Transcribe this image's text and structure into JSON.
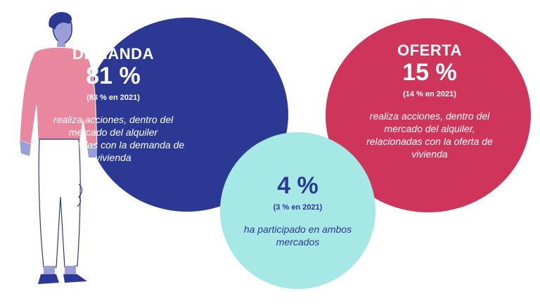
{
  "demand": {
    "heading": "DEMANDA",
    "percent": "81 %",
    "previous": "(83 % en 2021)",
    "description": "realiza acciones, dentro del mercado del alquiler relacionadas con la demanda de vivienda",
    "color": "#2b3894"
  },
  "offer": {
    "heading": "OFERTA",
    "percent": "15 %",
    "previous": "(14 % en 2021)",
    "description": "realiza acciones, dentro del mercado del alquiler, relacionadas con la oferta de vivienda",
    "color": "#cf355a"
  },
  "both": {
    "percent": "4 %",
    "previous": "(3 % en 2021)",
    "description": "ha participado en ambos mercados",
    "color": "#a6e8e5"
  },
  "illustration": {
    "icon": "standing-person-illustration",
    "sweater_color": "#e8879e",
    "hair_color": "#2b3894"
  }
}
